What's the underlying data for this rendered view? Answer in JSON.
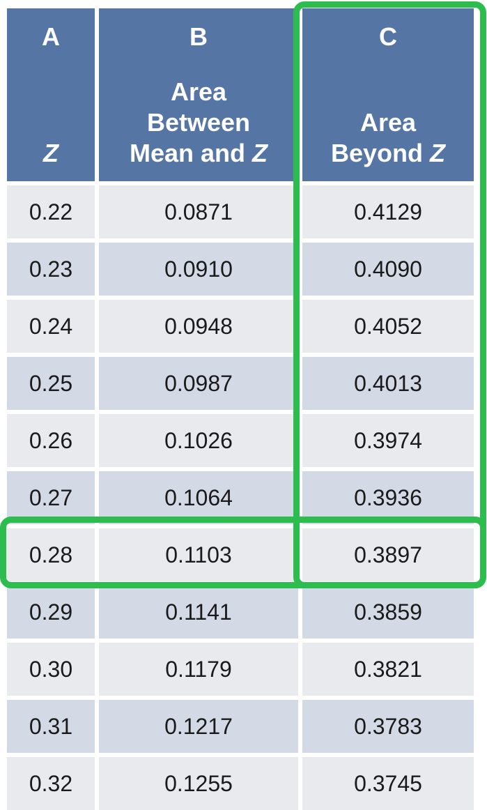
{
  "columns": [
    {
      "letter": "A",
      "desc_lines": [],
      "desc_last": "Z"
    },
    {
      "letter": "B",
      "desc_lines": [
        "Area",
        "Between"
      ],
      "desc_last_prefix": "Mean and ",
      "desc_last": "Z"
    },
    {
      "letter": "C",
      "desc_lines": [
        "Area"
      ],
      "desc_last_prefix": "Beyond ",
      "desc_last": "Z"
    }
  ],
  "rows": [
    {
      "z": "0.22",
      "between": "0.0871",
      "beyond": "0.4129"
    },
    {
      "z": "0.23",
      "between": "0.0910",
      "beyond": "0.4090"
    },
    {
      "z": "0.24",
      "between": "0.0948",
      "beyond": "0.4052"
    },
    {
      "z": "0.25",
      "between": "0.0987",
      "beyond": "0.4013"
    },
    {
      "z": "0.26",
      "between": "0.1026",
      "beyond": "0.3974"
    },
    {
      "z": "0.27",
      "between": "0.1064",
      "beyond": "0.3936"
    },
    {
      "z": "0.28",
      "between": "0.1103",
      "beyond": "0.3897"
    },
    {
      "z": "0.29",
      "between": "0.1141",
      "beyond": "0.3859"
    },
    {
      "z": "0.30",
      "between": "0.1179",
      "beyond": "0.3821"
    },
    {
      "z": "0.31",
      "between": "0.1217",
      "beyond": "0.3783"
    },
    {
      "z": "0.32",
      "between": "0.1255",
      "beyond": "0.3745"
    }
  ],
  "highlight": {
    "column": "C",
    "row_z": "0.28",
    "color": "#2dbd4e"
  },
  "colors": {
    "header": "#5575a5",
    "row_light": "#e8eaee",
    "row_dark": "#d3dae6"
  }
}
